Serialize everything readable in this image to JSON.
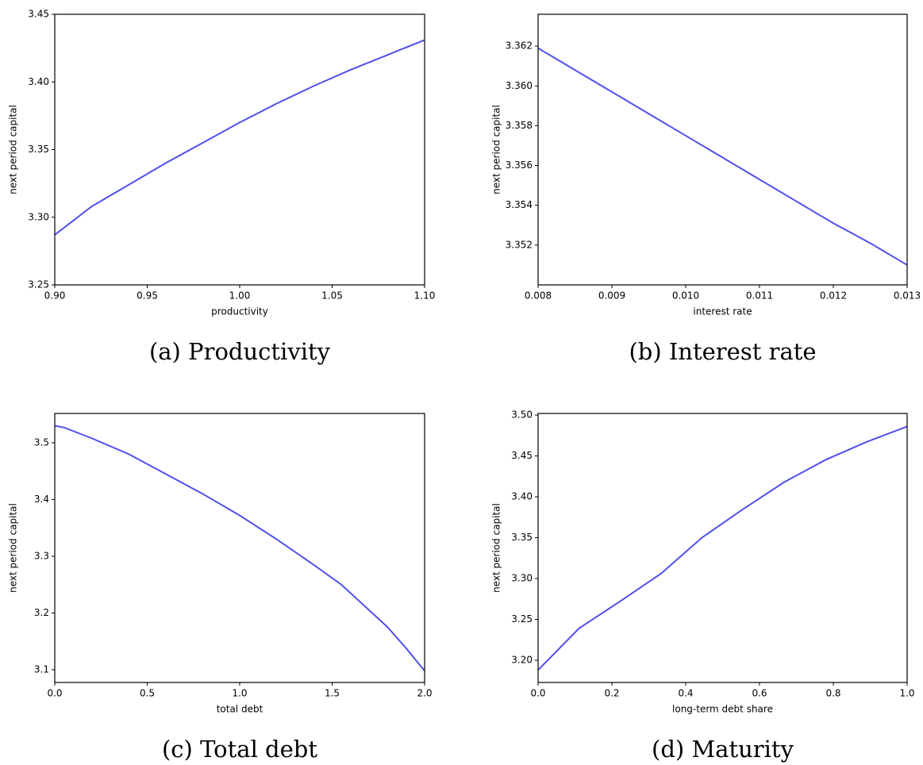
{
  "chart_data": [
    {
      "type": "line",
      "caption": "(a) Productivity",
      "x_label": "productivity",
      "y_label": "next period capital",
      "color": "#5050ee",
      "x": [
        0.9,
        0.92,
        0.94,
        0.96,
        0.98,
        1.0,
        1.02,
        1.04,
        1.06,
        1.08,
        1.1
      ],
      "values": [
        3.287,
        3.308,
        3.324,
        3.34,
        3.355,
        3.37,
        3.384,
        3.397,
        3.409,
        3.42,
        3.431
      ],
      "xlim": [
        0.9,
        1.1
      ],
      "ylim": [
        3.25,
        3.45
      ],
      "xticks": [
        {
          "value": 0.9,
          "label": "0.90"
        },
        0.95,
        {
          "value": 1.0,
          "label": "1.00"
        },
        1.05,
        {
          "value": 1.1,
          "label": "1.10"
        }
      ],
      "yticks": [
        3.25,
        {
          "value": 3.3,
          "label": "3.30"
        },
        3.35,
        {
          "value": 3.4,
          "label": "3.40"
        },
        3.45
      ]
    },
    {
      "type": "line",
      "caption": "(b) Interest rate",
      "x_label": "interest rate",
      "y_label": "next period capital",
      "color": "#5050ee",
      "x": [
        0.008,
        0.0085,
        0.009,
        0.0095,
        0.01,
        0.0105,
        0.011,
        0.0115,
        0.012,
        0.0125,
        0.013
      ],
      "values": [
        3.3619,
        3.3608,
        3.3597,
        3.3586,
        3.3575,
        3.3564,
        3.3553,
        3.3542,
        3.3531,
        3.3521,
        3.351
      ],
      "xlim": [
        0.008,
        0.013
      ],
      "ylim": [
        3.35,
        3.3636
      ],
      "xticks": [
        0.008,
        0.009,
        {
          "value": 0.01,
          "label": "0.010"
        },
        0.011,
        0.012,
        0.013
      ],
      "yticks": [
        3.352,
        3.354,
        3.356,
        3.358,
        {
          "value": 3.36,
          "label": "3.360"
        },
        3.362
      ]
    },
    {
      "type": "line",
      "caption": "(c) Total debt",
      "x_label": "total debt",
      "y_label": "next period capital",
      "color": "#5050ee",
      "x": [
        0,
        0.05,
        0.2,
        0.4,
        0.6,
        0.8,
        1.0,
        1.2,
        1.4,
        1.55,
        1.7,
        1.8,
        1.9,
        2.0
      ],
      "values": [
        3.53,
        3.527,
        3.508,
        3.48,
        3.445,
        3.41,
        3.372,
        3.33,
        3.285,
        3.25,
        3.205,
        3.175,
        3.138,
        3.098
      ],
      "xlim": [
        0,
        2
      ],
      "ylim": [
        3.0776,
        3.5517
      ],
      "xticks": [
        {
          "value": 0,
          "label": "0.0"
        },
        0.5,
        {
          "value": 1,
          "label": "1.0"
        },
        1.5,
        {
          "value": 2,
          "label": "2.0"
        }
      ],
      "yticks": [
        3.1,
        3.2,
        3.3,
        3.4,
        3.5
      ]
    },
    {
      "type": "line",
      "caption": "(d) Maturity",
      "x_label": "long-term debt share",
      "y_label": "next period capital",
      "color": "#5050ee",
      "x": [
        0,
        0.111,
        0.222,
        0.333,
        0.444,
        0.556,
        0.667,
        0.778,
        0.889,
        1.0
      ],
      "values": [
        3.188,
        3.239,
        3.272,
        3.306,
        3.35,
        3.385,
        3.418,
        3.445,
        3.467,
        3.486
      ],
      "xlim": [
        0,
        1
      ],
      "ylim": [
        3.1728,
        3.502
      ],
      "xticks": [
        {
          "value": 0,
          "label": "0.0"
        },
        0.2,
        0.4,
        0.6,
        0.8,
        {
          "value": 1,
          "label": "1.0"
        }
      ],
      "yticks": [
        {
          "value": 3.2,
          "label": "3.20"
        },
        3.25,
        {
          "value": 3.3,
          "label": "3.30"
        },
        3.35,
        {
          "value": 3.4,
          "label": "3.40"
        },
        3.45,
        {
          "value": 3.5,
          "label": "3.50"
        }
      ]
    }
  ]
}
